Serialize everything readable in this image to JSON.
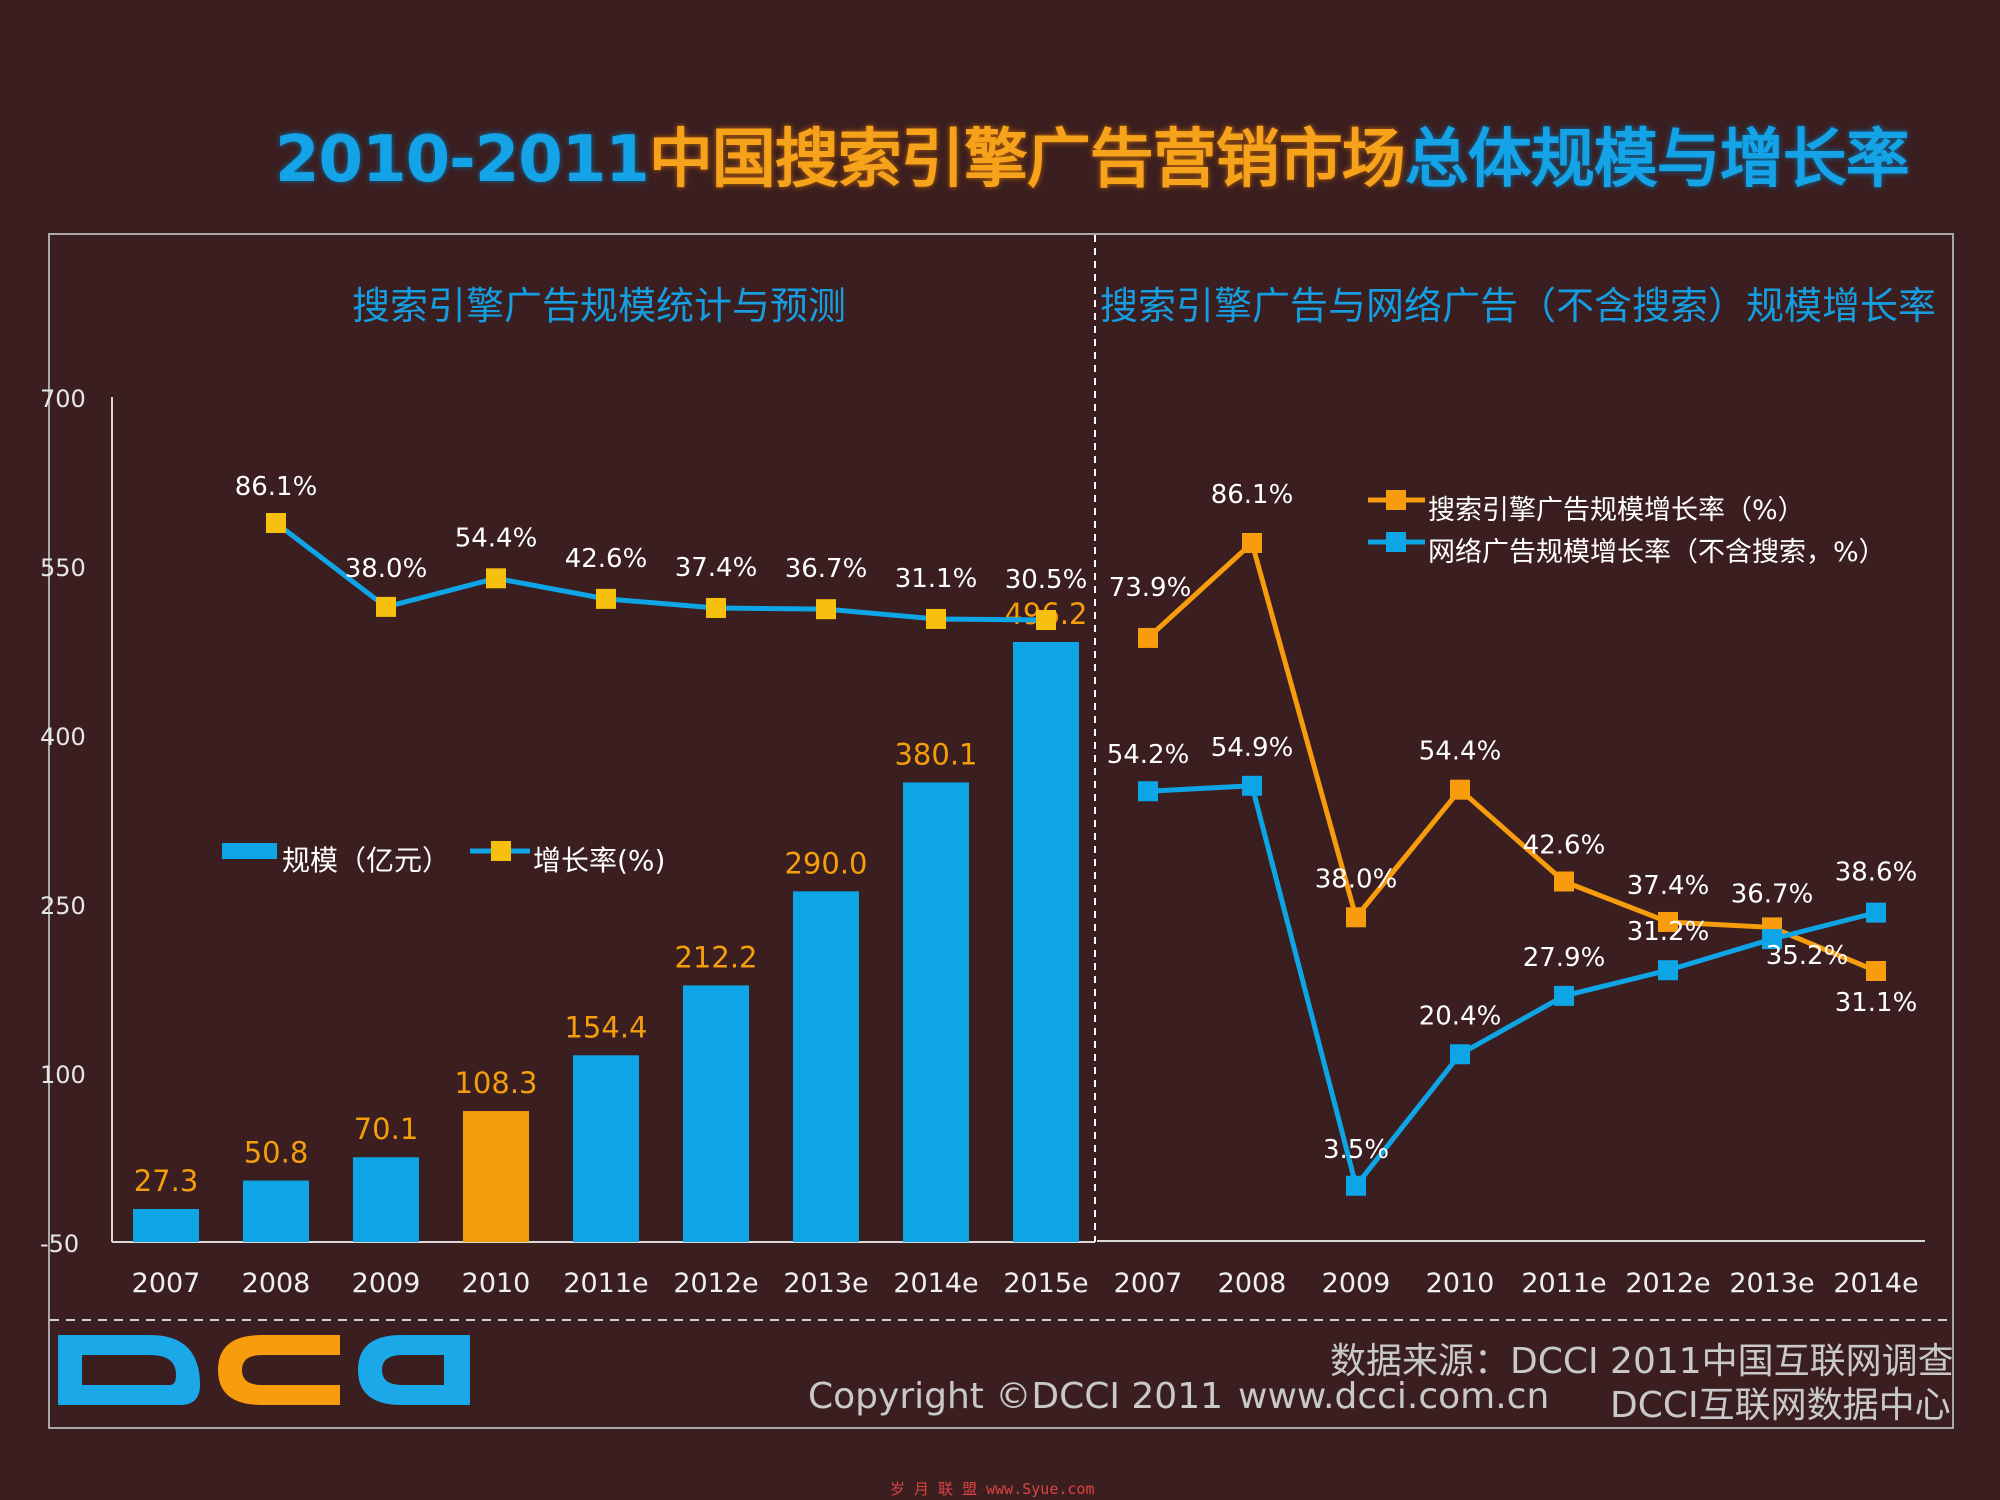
{
  "title": {
    "part1": "2010-2011",
    "part2": "中国搜索引擎广告营销市场",
    "part3": "总体规模与增长率"
  },
  "left_panel": {
    "subtitle": "搜索引擎广告规模统计与预测"
  },
  "right_panel": {
    "subtitle": "搜索引擎广告与网络广告（不含搜索）规模增长率"
  },
  "footer": {
    "logo": "DCCI",
    "source": "数据来源：DCCI 2011中国互联网调查",
    "copyright": "Copyright ©DCCI 2011",
    "website": "www.dcci.com.cn",
    "center": "DCCI互联网数据中心"
  },
  "watermark": "岁 月 联 盟  www.Syue.com",
  "colors": {
    "blue": "#0ea5e6",
    "orange": "#f79c0c",
    "highlight_bar": "#f59e0b",
    "background": "#3b1e1f",
    "marker": "#f7c00f"
  },
  "chart_data": [
    {
      "type": "bar",
      "title": "搜索引擎广告规模统计与预测",
      "categories": [
        "2007",
        "2008",
        "2009",
        "2010",
        "2011e",
        "2012e",
        "2013e",
        "2014e",
        "2015e"
      ],
      "ylim": [
        -50,
        700
      ],
      "yticks": [
        "-50",
        "100",
        "250",
        "400",
        "550",
        "700"
      ],
      "highlight_category": "2010",
      "legend_placement": "middle-left",
      "series": [
        {
          "name": "规模（亿元）",
          "type": "bar",
          "values": [
            27.3,
            50.8,
            70.1,
            108.3,
            154.4,
            212.2,
            290.0,
            380.1,
            496.2
          ],
          "labels": [
            "27.3",
            "50.8",
            "70.1",
            "108.3",
            "154.4",
            "212.2",
            "290.0",
            "380.1",
            "496.2"
          ]
        },
        {
          "name": "增长率(%)",
          "type": "line",
          "values": [
            null,
            86.1,
            38.0,
            54.4,
            42.6,
            37.4,
            36.7,
            31.1,
            30.5
          ],
          "labels": [
            "",
            "86.1%",
            "38.0%",
            "54.4%",
            "42.6%",
            "37.4%",
            "36.7%",
            "31.1%",
            "30.5%"
          ]
        }
      ]
    },
    {
      "type": "line",
      "title": "搜索引擎广告与网络广告（不含搜索）规模增长率",
      "categories": [
        "2007",
        "2008",
        "2009",
        "2010",
        "2011e",
        "2012e",
        "2013e",
        "2014e"
      ],
      "legend_placement": "top-right",
      "series": [
        {
          "name": "搜索引擎广告规模增长率（%）",
          "color": "#f79c0c",
          "values": [
            73.9,
            86.1,
            38.0,
            54.4,
            42.6,
            37.4,
            36.7,
            31.1
          ],
          "labels": [
            "73.9%",
            "86.1%",
            "38.0%",
            "54.4%",
            "42.6%",
            "37.4%",
            "36.7%",
            "31.1%"
          ]
        },
        {
          "name": "网络广告规模增长率（不含搜索，%）",
          "color": "#0ea5e6",
          "values": [
            54.2,
            54.9,
            3.5,
            20.4,
            27.9,
            31.2,
            35.2,
            38.6
          ],
          "labels": [
            "54.2%",
            "54.9%",
            "3.5%",
            "20.4%",
            "27.9%",
            "31.2%",
            "35.2%",
            "38.6%"
          ]
        }
      ]
    }
  ]
}
